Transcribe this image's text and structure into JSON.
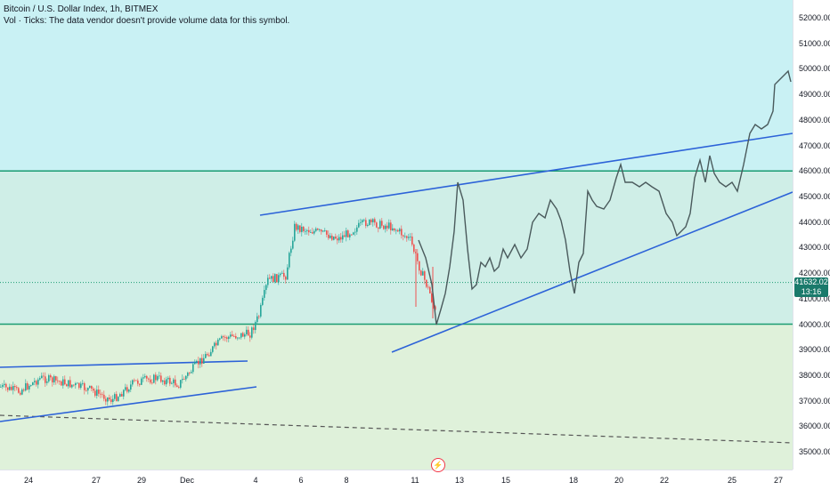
{
  "header": {
    "title": "Bitcoin / U.S. Dollar Index, 1h, BITMEX",
    "volume_note": "Vol · Ticks: The data vendor doesn't provide volume data for this symbol."
  },
  "price_axis": {
    "ticks": [
      "52000.00",
      "51000.00",
      "50000.00",
      "49000.00",
      "48000.00",
      "47000.00",
      "46000.00",
      "45000.00",
      "44000.00",
      "43000.00",
      "42000.00",
      "41000.00",
      "40000.00",
      "39000.00",
      "38000.00",
      "37000.00",
      "36000.00",
      "35000.00"
    ],
    "last_price": "41632.02",
    "countdown": "13:16"
  },
  "time_axis": {
    "ticks": [
      "24",
      "27",
      "29",
      "Dec",
      "4",
      "6",
      "8",
      "11",
      "13",
      "15",
      "18",
      "20",
      "22",
      "25",
      "27"
    ]
  },
  "colors": {
    "zone_top": "#c9f1f4",
    "zone_mid": "#cfeee7",
    "zone_bottom": "#dff1da",
    "horizontal_line": "#1a9c72",
    "trendline": "#2c62d8",
    "price_line": "#4a5a5c",
    "candle_up": "#26a69a",
    "candle_down": "#ef5350",
    "last_price_tag": "#1a7a6b"
  },
  "levels": {
    "upper_resistance": 46000,
    "support": 40000,
    "last_price": 41632.02
  },
  "icons": {
    "event_marker": "lightning-icon"
  }
}
